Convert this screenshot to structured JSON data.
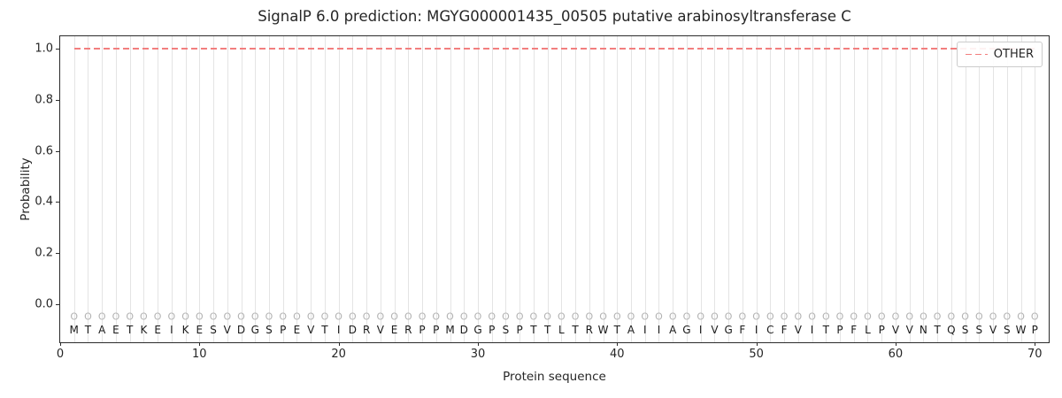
{
  "chart_data": {
    "type": "line",
    "title": "SignalP 6.0 prediction: MGYG000001435_00505 putative arabinosyltransferase C",
    "xlabel": "Protein sequence",
    "ylabel": "Probability",
    "xlim": [
      0,
      71
    ],
    "ylim": [
      -0.15,
      1.05
    ],
    "x_ticks": [
      0,
      10,
      20,
      30,
      40,
      50,
      60,
      70
    ],
    "x_tick_labels": [
      "0",
      "10",
      "20",
      "30",
      "40",
      "50",
      "60",
      "70"
    ],
    "y_ticks": [
      0.0,
      0.2,
      0.4,
      0.6,
      0.8,
      1.0
    ],
    "y_tick_labels": [
      "0.0",
      "0.2",
      "0.4",
      "0.6",
      "0.8",
      "1.0"
    ],
    "grid": "vertical gridline at each residue position, grid on",
    "colors": {
      "other_line": "#f27e7e",
      "gridline": "#e4e4e4",
      "position_marker": "#b3b3b3",
      "residue_text": "#1a1a1a"
    },
    "legend": {
      "position": "upper right",
      "entries": [
        {
          "label": "OTHER",
          "color": "#f27e7e",
          "linestyle": "dashed"
        }
      ]
    },
    "series": [
      {
        "name": "OTHER",
        "linestyle": "dashed",
        "color": "#f27e7e",
        "y_value": 1.0,
        "x_start": 1,
        "x_end": 70
      }
    ],
    "sequence": "MTAETKEIKESVDGSPEVTIDRVERPPMDGPSPTTLTRWTAIIAGIVGFICFVITPFLPVVNTQSSVSWP",
    "per_position_label": "O",
    "marker_y": -0.05,
    "sequence_y": -0.103
  }
}
